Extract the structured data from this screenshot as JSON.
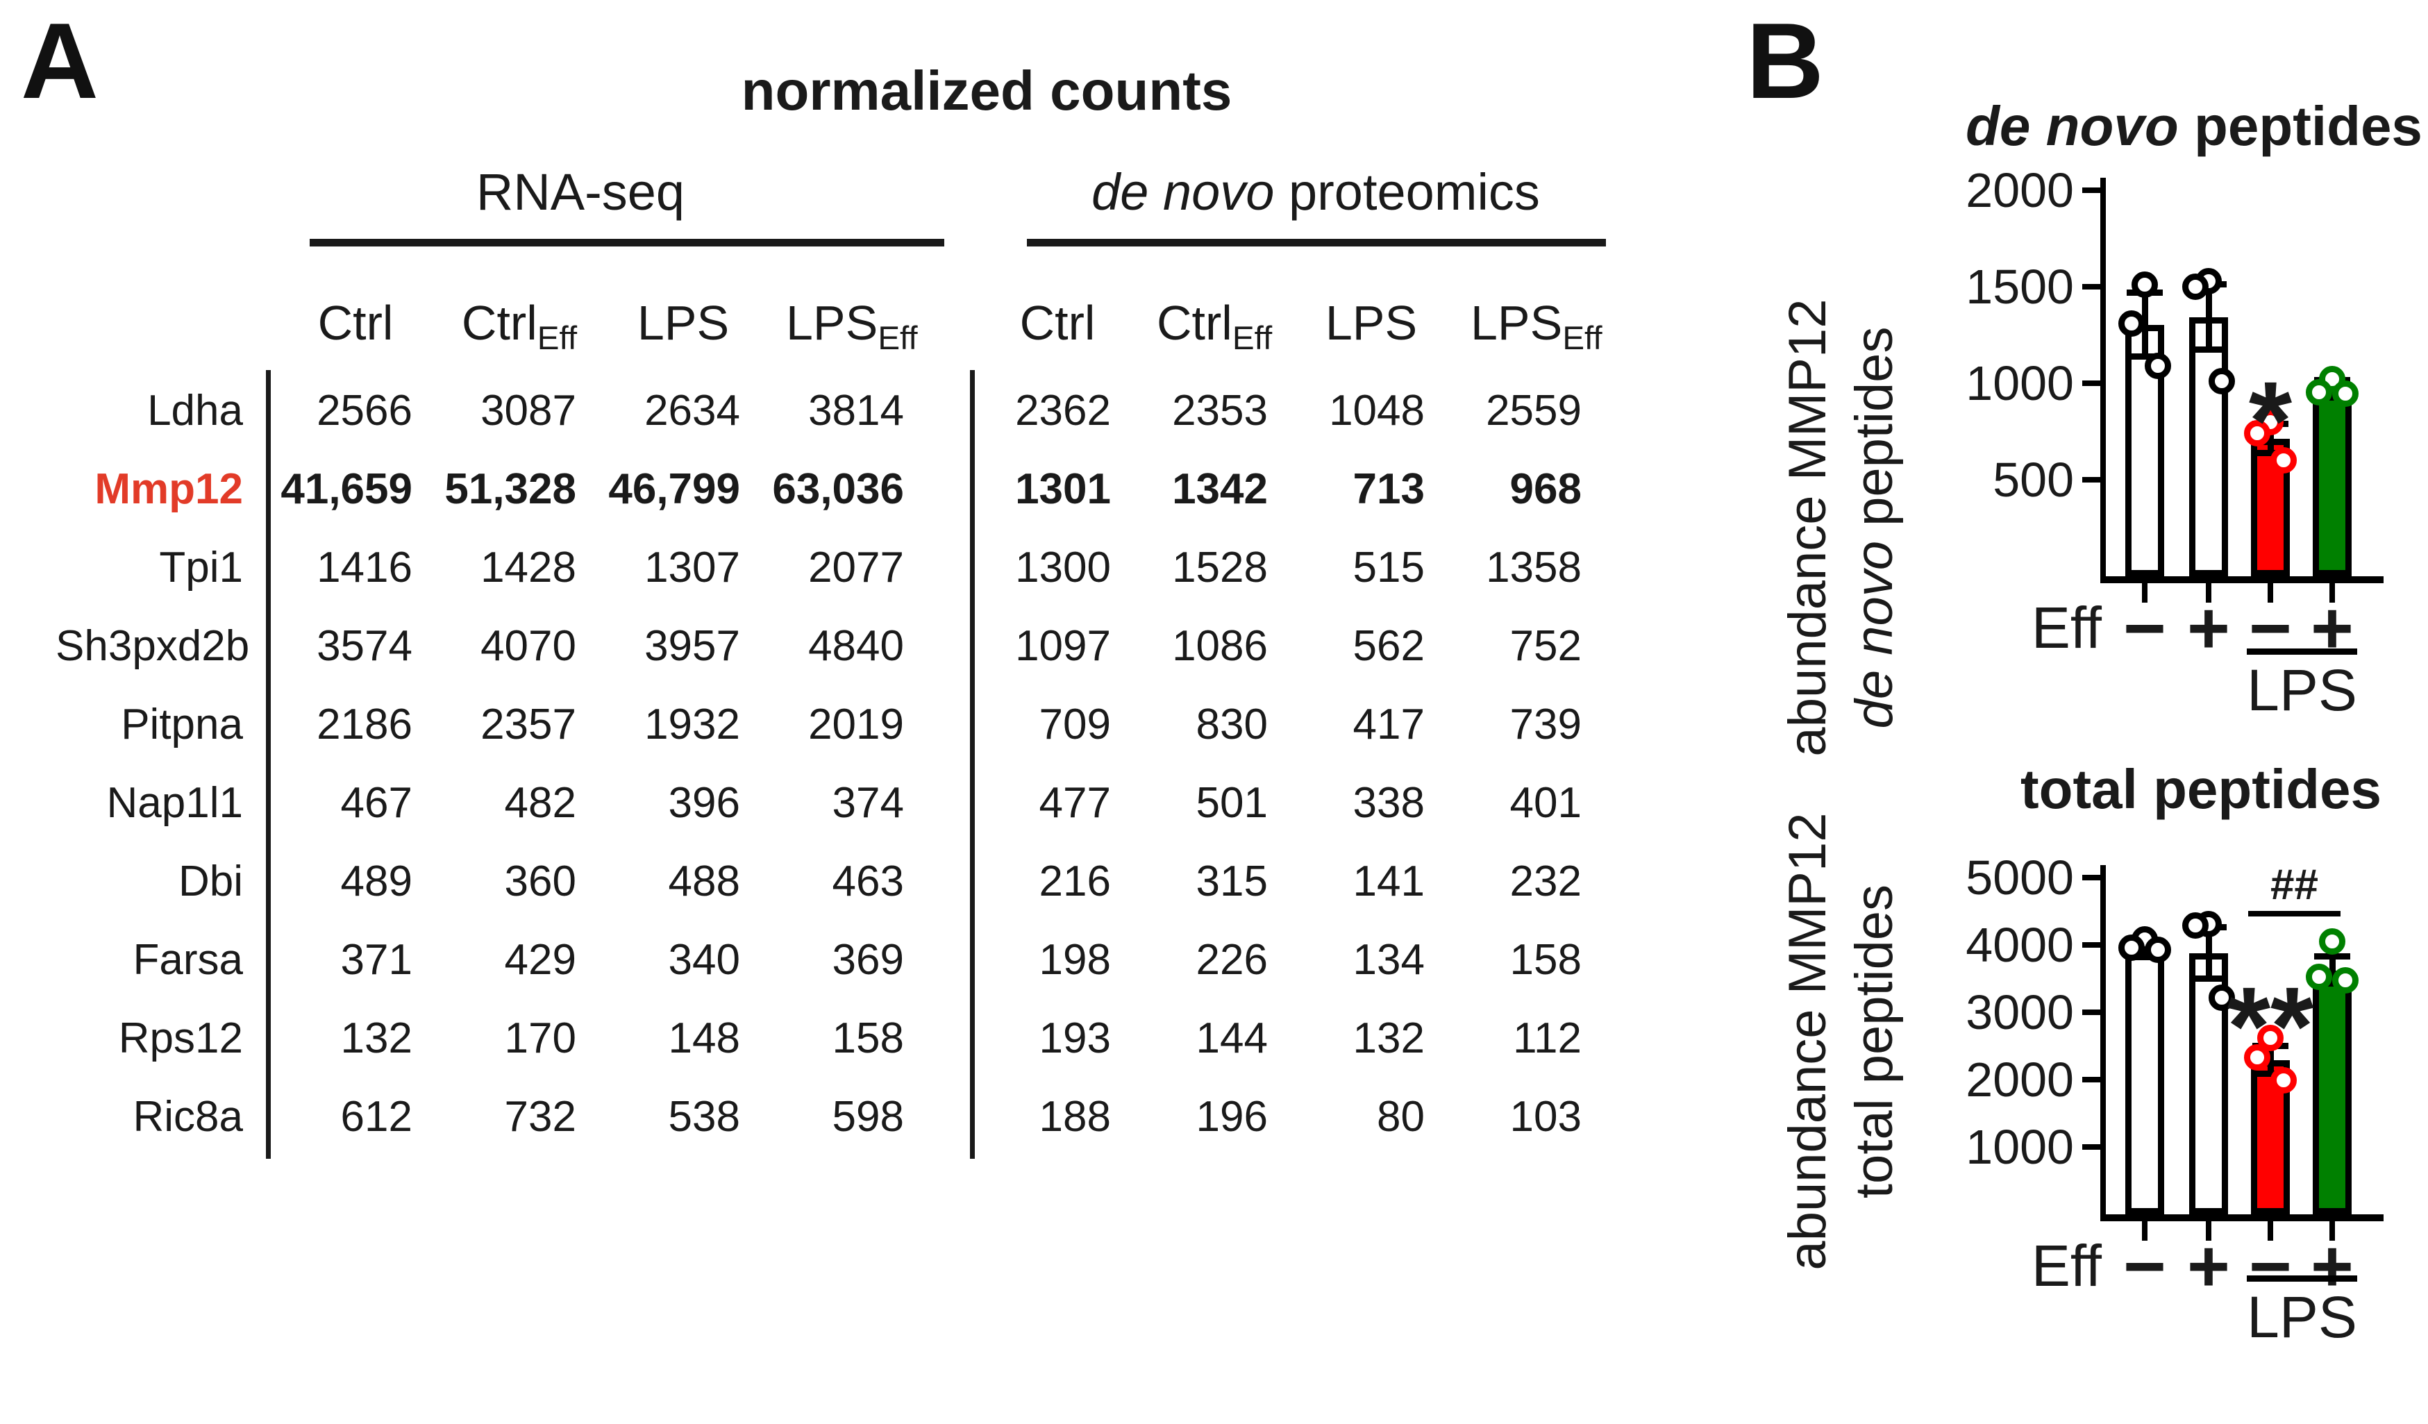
{
  "panelA": {
    "label": "A",
    "title": "normalized counts",
    "highlight_color": "#e23b28",
    "groups": [
      {
        "label": "RNA-seq"
      },
      {
        "label_italic": "de novo",
        "label_rest": " proteomics"
      }
    ],
    "col_headers": [
      {
        "main": "Ctrl",
        "sub": ""
      },
      {
        "main": "Ctrl",
        "sub": "Eff"
      },
      {
        "main": "LPS",
        "sub": ""
      },
      {
        "main": "LPS",
        "sub": "Eff"
      },
      {
        "main": "Ctrl",
        "sub": ""
      },
      {
        "main": "Ctrl",
        "sub": "Eff"
      },
      {
        "main": "LPS",
        "sub": ""
      },
      {
        "main": "LPS",
        "sub": "Eff"
      }
    ],
    "rows": [
      {
        "gene": "Ldha",
        "highlight": false,
        "rna": [
          "2566",
          "3087",
          "2634",
          "3814"
        ],
        "prot": [
          "2362",
          "2353",
          "1048",
          "2559"
        ]
      },
      {
        "gene": "Mmp12",
        "highlight": true,
        "rna": [
          "41,659",
          "51,328",
          "46,799",
          "63,036"
        ],
        "prot": [
          "1301",
          "1342",
          "713",
          "968"
        ]
      },
      {
        "gene": "Tpi1",
        "highlight": false,
        "rna": [
          "1416",
          "1428",
          "1307",
          "2077"
        ],
        "prot": [
          "1300",
          "1528",
          "515",
          "1358"
        ]
      },
      {
        "gene": "Sh3pxd2b",
        "highlight": false,
        "rna": [
          "3574",
          "4070",
          "3957",
          "4840"
        ],
        "prot": [
          "1097",
          "1086",
          "562",
          "752"
        ]
      },
      {
        "gene": "Pitpna",
        "highlight": false,
        "rna": [
          "2186",
          "2357",
          "1932",
          "2019"
        ],
        "prot": [
          "709",
          "830",
          "417",
          "739"
        ]
      },
      {
        "gene": "Nap1l1",
        "highlight": false,
        "rna": [
          "467",
          "482",
          "396",
          "374"
        ],
        "prot": [
          "477",
          "501",
          "338",
          "401"
        ]
      },
      {
        "gene": "Dbi",
        "highlight": false,
        "rna": [
          "489",
          "360",
          "488",
          "463"
        ],
        "prot": [
          "216",
          "315",
          "141",
          "232"
        ]
      },
      {
        "gene": "Farsa",
        "highlight": false,
        "rna": [
          "371",
          "429",
          "340",
          "369"
        ],
        "prot": [
          "198",
          "226",
          "134",
          "158"
        ]
      },
      {
        "gene": "Rps12",
        "highlight": false,
        "rna": [
          "132",
          "170",
          "148",
          "158"
        ],
        "prot": [
          "193",
          "144",
          "132",
          "112"
        ]
      },
      {
        "gene": "Ric8a",
        "highlight": false,
        "rna": [
          "612",
          "732",
          "538",
          "598"
        ],
        "prot": [
          "188",
          "196",
          "80",
          "103"
        ]
      }
    ]
  },
  "panelB": {
    "label": "B"
  },
  "chart_data": [
    {
      "type": "bar",
      "title_italic": "de novo",
      "title_rest": " peptides",
      "ylabel_line1": "abundance MMP12",
      "ylabel_line2_italic": "de novo",
      "ylabel_line2_rest": " peptides",
      "ylim": [
        0,
        2000
      ],
      "yticks": [
        500,
        1000,
        1500,
        2000
      ],
      "categories": [
        "Eff−",
        "Eff+",
        "LPS Eff−",
        "LPS Eff+"
      ],
      "x_row_label": "Eff",
      "x_signs": [
        "−",
        "+",
        "−",
        "+"
      ],
      "x_group_label": "LPS",
      "values": [
        1301,
        1342,
        713,
        968
      ],
      "errors": [
        165,
        170,
        75,
        45
      ],
      "points": [
        [
          1510,
          1310,
          1090
        ],
        [
          1530,
          1500,
          1010
        ],
        [
          800,
          740,
          600
        ],
        [
          1020,
          955,
          945
        ]
      ],
      "bar_fill": [
        "#ffffff",
        "#ffffff",
        "#ff0000",
        "#008000"
      ],
      "point_ring": [
        "#000000",
        "#000000",
        "#ff0000",
        "#008000"
      ],
      "annotations": [
        {
          "text": "*",
          "bar": 2,
          "y": 860
        }
      ]
    },
    {
      "type": "bar",
      "title_italic": "",
      "title_rest": "total peptides",
      "ylabel_line1": "abundance MMP12",
      "ylabel_line2_italic": "",
      "ylabel_line2_rest": "total peptides",
      "ylim": [
        0,
        5000
      ],
      "yticks": [
        1000,
        2000,
        3000,
        4000,
        5000
      ],
      "categories": [
        "Eff−",
        "Eff+",
        "LPS Eff−",
        "LPS Eff+"
      ],
      "x_row_label": "Eff",
      "x_signs": [
        "−",
        "+",
        "−",
        "+"
      ],
      "x_group_label": "LPS",
      "values": [
        3920,
        3880,
        2290,
        3620
      ],
      "errors": [
        110,
        380,
        210,
        200
      ],
      "points": [
        [
          4080,
          3960,
          3930
        ],
        [
          4310,
          4290,
          3220
        ],
        [
          2620,
          2330,
          1990
        ],
        [
          4050,
          3530,
          3470
        ]
      ],
      "bar_fill": [
        "#ffffff",
        "#ffffff",
        "#ff0000",
        "#008000"
      ],
      "point_ring": [
        "#000000",
        "#000000",
        "#ff0000",
        "#008000"
      ],
      "annotations": [
        {
          "text": "**",
          "bar": 2,
          "y": 2950
        },
        {
          "text": "##",
          "type": "bracket",
          "from": 2,
          "to": 3,
          "y": 4420
        }
      ]
    }
  ]
}
